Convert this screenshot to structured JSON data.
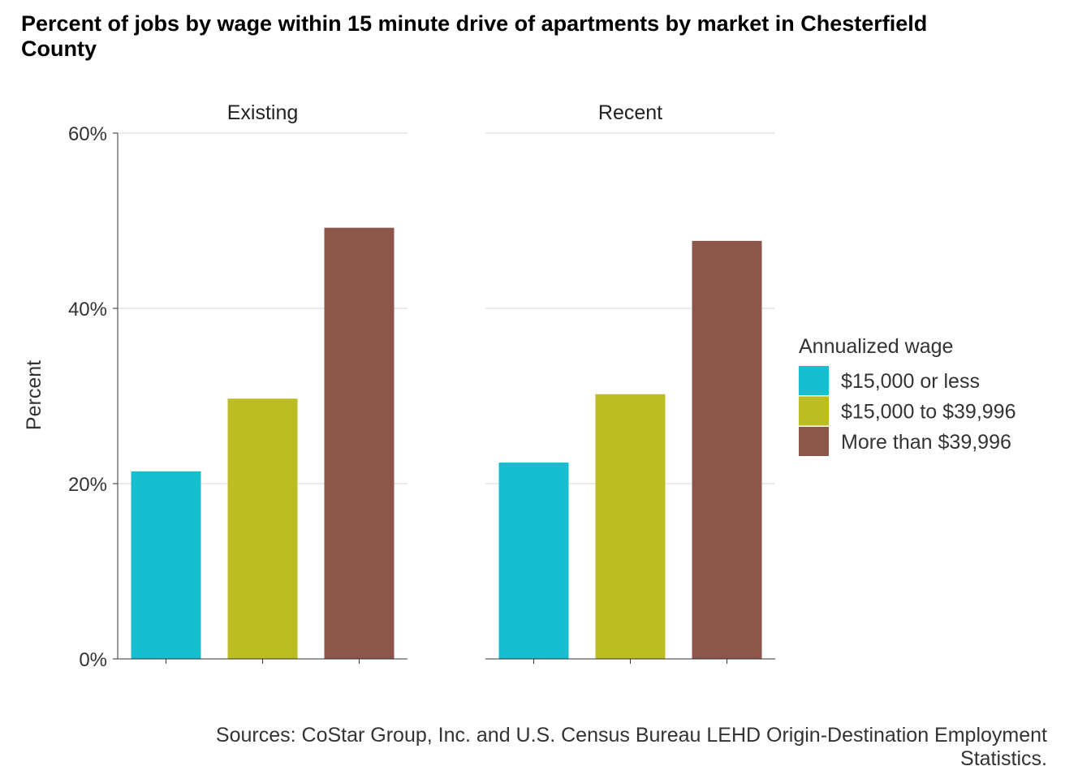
{
  "chart_data": {
    "type": "bar",
    "title": "Percent of jobs by wage within 15 minute drive of apartments by market in Chesterfield County",
    "ylabel": "Percent",
    "xlabel": "",
    "ylim": [
      0,
      60
    ],
    "yticks": [
      0,
      20,
      40,
      60
    ],
    "ytick_format": "percent",
    "grid": "horizontal",
    "legend_position": "right",
    "legend_title": "Annualized wage",
    "categories": [
      "$15,000 or less",
      "$15,000 to $39,996",
      "More than $39,996"
    ],
    "colors": [
      "#17BECF",
      "#BCBD22",
      "#8C564B"
    ],
    "facets": [
      {
        "label": "Existing",
        "values": [
          21.4,
          29.7,
          49.2
        ]
      },
      {
        "label": "Recent",
        "values": [
          22.4,
          30.2,
          47.7
        ]
      }
    ],
    "caption": "Sources: CoStar Group, Inc. and U.S. Census Bureau LEHD Origin-Destination Employment Statistics."
  }
}
